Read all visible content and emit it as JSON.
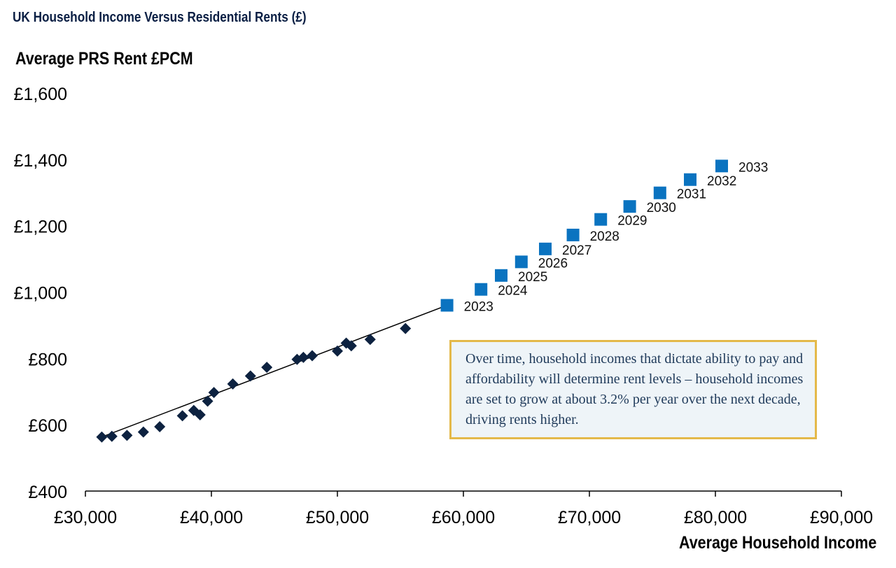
{
  "chart_data": {
    "type": "scatter",
    "title": "UK Household Income Versus Residential Rents (£)",
    "ylabel": "Average PRS Rent £PCM",
    "xlabel": "Average Household Income",
    "xlim": [
      30000,
      90000
    ],
    "ylim": [
      400,
      1600
    ],
    "x_ticks": [
      30000,
      40000,
      50000,
      60000,
      70000,
      80000,
      90000
    ],
    "x_tick_labels": [
      "£30,000",
      "£40,000",
      "£50,000",
      "£60,000",
      "£70,000",
      "£80,000",
      "£90,000"
    ],
    "y_ticks": [
      400,
      600,
      800,
      1000,
      1200,
      1400,
      1600
    ],
    "y_tick_labels": [
      "£400",
      "£600",
      "£800",
      "£1,000",
      "£1,200",
      "£1,400",
      "£1,600"
    ],
    "grid": false,
    "colors": {
      "historical": "#0d2240",
      "forecast": "#0a73c0",
      "trendline": "#000000",
      "annotation_border": "#e4b94a"
    },
    "series": [
      {
        "marker": "diamond",
        "points": [
          [
            31300,
            563
          ],
          [
            32100,
            565
          ],
          [
            33300,
            568
          ],
          [
            34600,
            578
          ],
          [
            35900,
            594
          ],
          [
            37700,
            627
          ],
          [
            38600,
            643
          ],
          [
            39100,
            630
          ],
          [
            39700,
            671
          ],
          [
            40200,
            697
          ],
          [
            41700,
            723
          ],
          [
            43100,
            747
          ],
          [
            44400,
            773
          ],
          [
            46800,
            797
          ],
          [
            47300,
            803
          ],
          [
            48000,
            808
          ],
          [
            50000,
            822
          ],
          [
            50700,
            846
          ],
          [
            51100,
            838
          ],
          [
            52600,
            857
          ],
          [
            55400,
            890
          ]
        ]
      },
      {
        "marker": "square",
        "points": [
          [
            58700,
            960
          ],
          [
            61400,
            1008
          ],
          [
            63000,
            1050
          ],
          [
            64600,
            1091
          ],
          [
            66500,
            1130
          ],
          [
            68700,
            1172
          ],
          [
            70900,
            1219
          ],
          [
            73200,
            1258
          ],
          [
            75600,
            1299
          ],
          [
            78000,
            1339
          ],
          [
            80500,
            1380
          ]
        ],
        "labels": [
          "2023",
          "2024",
          "2025",
          "2026",
          "2027",
          "2028",
          "2029",
          "2030",
          "2031",
          "2032",
          "2033"
        ]
      }
    ],
    "trendline": {
      "from": [
        31300,
        563
      ],
      "to": [
        58700,
        960
      ]
    }
  },
  "annotation_text": "Over time, household incomes that dictate ability to pay and affordability will determine rent levels – household incomes are set to grow at about 3.2% per year over the next decade, driving rents higher."
}
